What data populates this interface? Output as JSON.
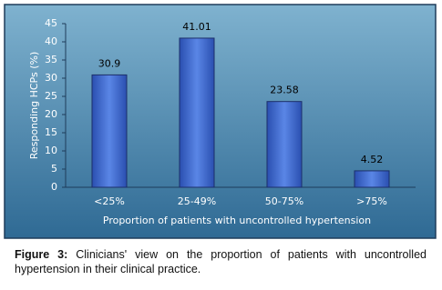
{
  "chart_data": {
    "type": "bar",
    "x_label": "Proportion of patients with uncontrolled hypertension",
    "y_label": "Responding HCPs (%)",
    "categories": [
      "<25%",
      "25-49%",
      "50-75%",
      ">75%"
    ],
    "values": [
      30.9,
      41.01,
      23.58,
      4.52
    ],
    "color": "#3b62c4",
    "ylim": [
      0,
      45
    ],
    "yticks": [
      0,
      5,
      10,
      15,
      20,
      25,
      30,
      35,
      40,
      45
    ],
    "caption_label": "Figure 3:",
    "caption": "Clinicians' view on the proportion of patients with uncontrolled hypertension in their clinical practice."
  }
}
